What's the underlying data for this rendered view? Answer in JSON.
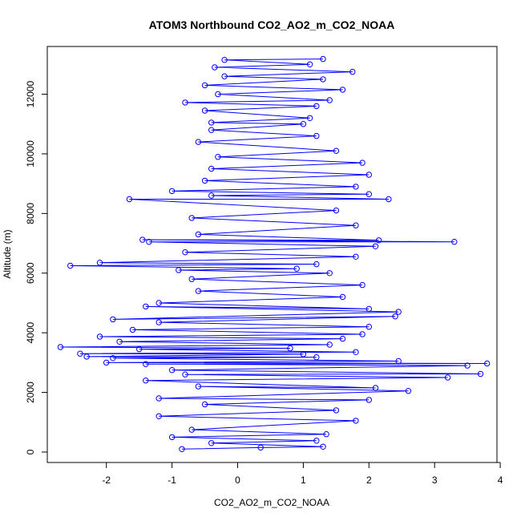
{
  "chart_data": {
    "type": "scatter",
    "title": "ATOM3 Northbound CO2_AO2_m_CO2_NOAA",
    "xlabel": "CO2_AO2_m_CO2_NOAA",
    "ylabel": "Altitude (m)",
    "xlim": [
      -2.9,
      3.95
    ],
    "ylim": [
      -350,
      13600
    ],
    "x_ticks": [
      -2,
      -1,
      0,
      1,
      2,
      3,
      4
    ],
    "x_tick_labels": [
      "-2",
      "-1",
      "0",
      "1",
      "2",
      "3",
      "4"
    ],
    "y_ticks": [
      0,
      2000,
      4000,
      6000,
      8000,
      10000,
      12000
    ],
    "y_tick_labels": [
      "0",
      "2000",
      "4000",
      "6000",
      "8000",
      "10000",
      "12000"
    ],
    "grid": false,
    "marker": "open-circle",
    "connected": true,
    "series": [
      {
        "color": "#0000ff",
        "points": [
          {
            "x": -0.85,
            "y": 100
          },
          {
            "x": 0.35,
            "y": 150
          },
          {
            "x": 1.3,
            "y": 180
          },
          {
            "x": -0.4,
            "y": 300
          },
          {
            "x": 1.2,
            "y": 380
          },
          {
            "x": -1.0,
            "y": 500
          },
          {
            "x": 1.35,
            "y": 600
          },
          {
            "x": -0.7,
            "y": 750
          },
          {
            "x": 1.8,
            "y": 1050
          },
          {
            "x": -1.2,
            "y": 1200
          },
          {
            "x": 1.5,
            "y": 1400
          },
          {
            "x": -0.5,
            "y": 1600
          },
          {
            "x": 2.0,
            "y": 1750
          },
          {
            "x": -1.2,
            "y": 1800
          },
          {
            "x": 2.6,
            "y": 2050
          },
          {
            "x": -0.6,
            "y": 2200
          },
          {
            "x": 2.1,
            "y": 2150
          },
          {
            "x": -1.4,
            "y": 2400
          },
          {
            "x": 3.2,
            "y": 2500
          },
          {
            "x": -0.8,
            "y": 2600
          },
          {
            "x": 3.7,
            "y": 2620
          },
          {
            "x": -1.0,
            "y": 2750
          },
          {
            "x": 3.5,
            "y": 2900
          },
          {
            "x": -1.4,
            "y": 2950
          },
          {
            "x": 3.8,
            "y": 2970
          },
          {
            "x": -2.0,
            "y": 3000
          },
          {
            "x": 2.45,
            "y": 3050
          },
          {
            "x": -1.9,
            "y": 3150
          },
          {
            "x": 1.2,
            "y": 3180
          },
          {
            "x": -2.3,
            "y": 3200
          },
          {
            "x": 1.0,
            "y": 3280
          },
          {
            "x": -2.4,
            "y": 3300
          },
          {
            "x": 1.8,
            "y": 3350
          },
          {
            "x": -1.5,
            "y": 3450
          },
          {
            "x": 0.8,
            "y": 3480
          },
          {
            "x": -2.7,
            "y": 3520
          },
          {
            "x": 1.4,
            "y": 3600
          },
          {
            "x": -1.8,
            "y": 3700
          },
          {
            "x": 1.6,
            "y": 3800
          },
          {
            "x": -2.1,
            "y": 3870
          },
          {
            "x": 1.9,
            "y": 3950
          },
          {
            "x": -1.6,
            "y": 4100
          },
          {
            "x": 2.0,
            "y": 4200
          },
          {
            "x": -1.2,
            "y": 4350
          },
          {
            "x": 2.4,
            "y": 4550
          },
          {
            "x": -1.9,
            "y": 4450
          },
          {
            "x": 2.45,
            "y": 4700
          },
          {
            "x": -1.4,
            "y": 4880
          },
          {
            "x": 2.0,
            "y": 4800
          },
          {
            "x": -1.2,
            "y": 5000
          },
          {
            "x": 1.6,
            "y": 5200
          },
          {
            "x": -0.6,
            "y": 5400
          },
          {
            "x": 1.9,
            "y": 5600
          },
          {
            "x": -0.7,
            "y": 5800
          },
          {
            "x": 1.4,
            "y": 6000
          },
          {
            "x": -0.9,
            "y": 6100
          },
          {
            "x": 0.9,
            "y": 6150
          },
          {
            "x": -2.55,
            "y": 6250
          },
          {
            "x": 1.2,
            "y": 6300
          },
          {
            "x": -2.1,
            "y": 6350
          },
          {
            "x": 1.8,
            "y": 6550
          },
          {
            "x": -0.8,
            "y": 6700
          },
          {
            "x": 2.1,
            "y": 6900
          },
          {
            "x": -1.35,
            "y": 7050
          },
          {
            "x": 3.3,
            "y": 7050
          },
          {
            "x": -1.45,
            "y": 7120
          },
          {
            "x": 2.15,
            "y": 7100
          },
          {
            "x": -0.6,
            "y": 7300
          },
          {
            "x": 1.8,
            "y": 7600
          },
          {
            "x": -0.7,
            "y": 7850
          },
          {
            "x": 1.5,
            "y": 8100
          },
          {
            "x": -1.65,
            "y": 8480
          },
          {
            "x": 2.3,
            "y": 8480
          },
          {
            "x": -0.4,
            "y": 8600
          },
          {
            "x": 2.0,
            "y": 8650
          },
          {
            "x": -1.0,
            "y": 8750
          },
          {
            "x": 1.8,
            "y": 8900
          },
          {
            "x": -0.5,
            "y": 9100
          },
          {
            "x": 2.0,
            "y": 9300
          },
          {
            "x": -0.4,
            "y": 9500
          },
          {
            "x": 1.9,
            "y": 9700
          },
          {
            "x": -0.3,
            "y": 9900
          },
          {
            "x": 1.5,
            "y": 10100
          },
          {
            "x": -0.6,
            "y": 10400
          },
          {
            "x": 1.2,
            "y": 10600
          },
          {
            "x": -0.4,
            "y": 10800
          },
          {
            "x": 1.0,
            "y": 11000
          },
          {
            "x": -0.4,
            "y": 11050
          },
          {
            "x": 1.1,
            "y": 11200
          },
          {
            "x": -0.5,
            "y": 11450
          },
          {
            "x": 1.2,
            "y": 11600
          },
          {
            "x": -0.8,
            "y": 11720
          },
          {
            "x": 1.4,
            "y": 11800
          },
          {
            "x": -0.3,
            "y": 12000
          },
          {
            "x": 1.6,
            "y": 12150
          },
          {
            "x": -0.5,
            "y": 12300
          },
          {
            "x": 1.3,
            "y": 12500
          },
          {
            "x": -0.2,
            "y": 12600
          },
          {
            "x": 1.75,
            "y": 12750
          },
          {
            "x": -0.35,
            "y": 12900
          },
          {
            "x": 1.1,
            "y": 13000
          },
          {
            "x": -0.2,
            "y": 13150
          },
          {
            "x": 1.3,
            "y": 13180
          }
        ]
      }
    ]
  }
}
